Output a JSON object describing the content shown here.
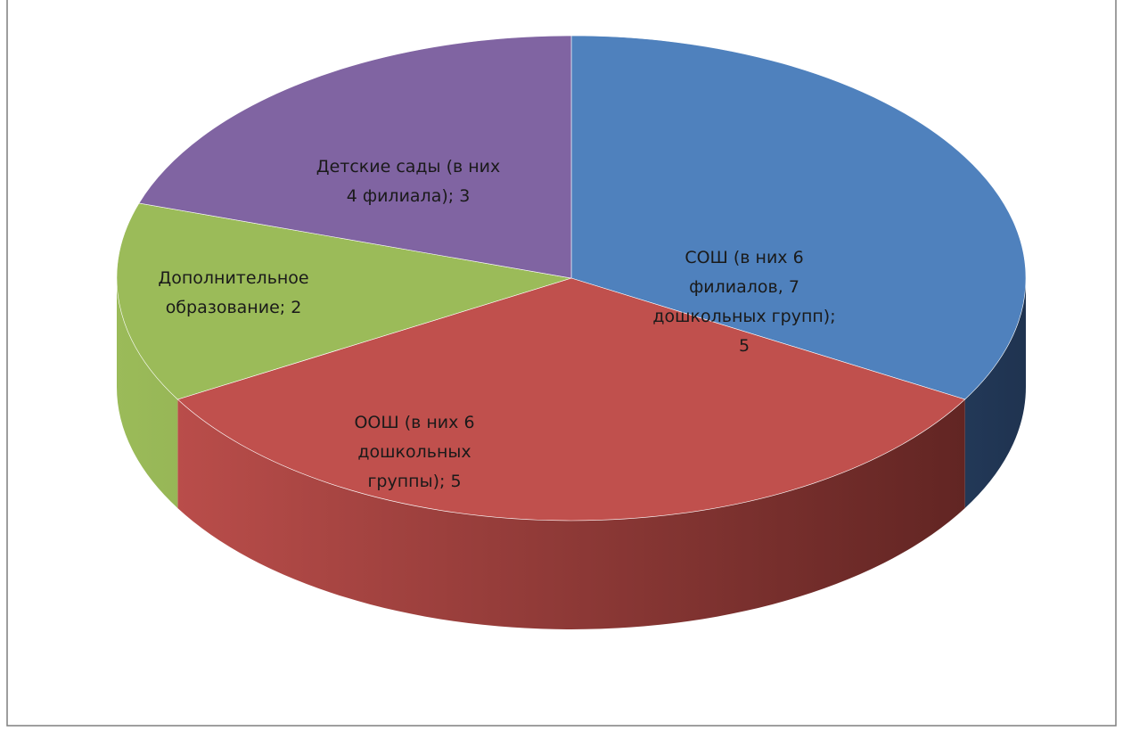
{
  "chart_data": {
    "type": "pie",
    "title": "",
    "slices": [
      {
        "label_lines": [
          "СОШ (в них 6",
          "филиалов, 7",
          "дошкольных групп);",
          "5"
        ],
        "value": 5,
        "color": "#4F81BD",
        "side_dark": "#1F3350"
      },
      {
        "label_lines": [
          "ООШ (в них 6",
          "дошкольных",
          "группы); 5"
        ],
        "value": 5,
        "color": "#C0504D",
        "side_dark": "#5B2220"
      },
      {
        "label_lines": [
          "Дополнительное",
          "образование; 2"
        ],
        "value": 2,
        "color": "#9BBB59",
        "side_dark": "#5E7634"
      },
      {
        "label_lines": [
          "Детские сады (в них",
          "4 филиала); 3"
        ],
        "value": 3,
        "color": "#8064A2",
        "side_dark": "#4B3A61"
      }
    ],
    "legend": "none",
    "style": "3d-pie"
  }
}
